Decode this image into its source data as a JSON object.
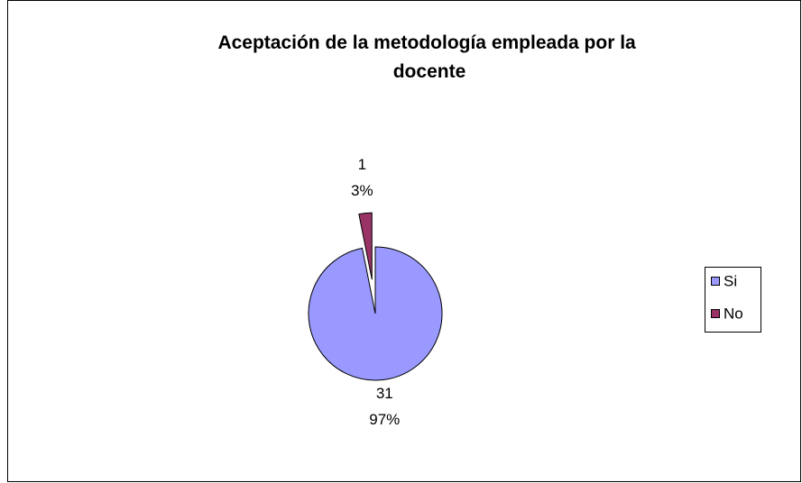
{
  "chart_data": {
    "type": "pie",
    "title": "Aceptación de la metodología empleada por la docente",
    "categories": [
      "Si",
      "No"
    ],
    "values": [
      31,
      1
    ],
    "percentages": [
      97,
      3
    ],
    "percentage_labels": [
      "97%",
      "3%"
    ],
    "colors": [
      "#9999ff",
      "#993366"
    ],
    "legend": "right"
  }
}
